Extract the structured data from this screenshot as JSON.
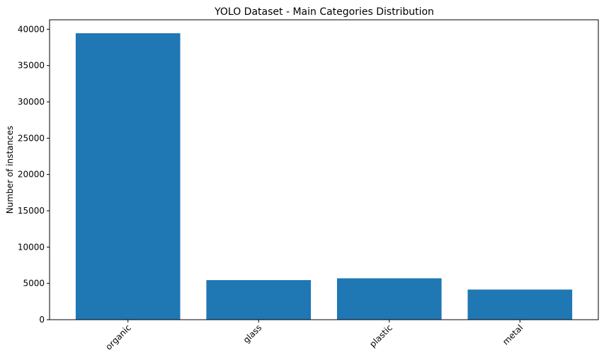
{
  "chart_data": {
    "type": "bar",
    "title": "YOLO Dataset - Main Categories Distribution",
    "xlabel": "",
    "ylabel": "Number of instances",
    "categories": [
      "organic",
      "glass",
      "plastic",
      "metal"
    ],
    "values": [
      39450,
      5450,
      5700,
      4150
    ],
    "ylim": [
      0,
      41300
    ],
    "yticks": [
      0,
      5000,
      10000,
      15000,
      20000,
      25000,
      30000,
      35000,
      40000
    ],
    "ytick_labels": [
      "0",
      "5000",
      "10000",
      "15000",
      "20000",
      "25000",
      "30000",
      "35000",
      "40000"
    ],
    "bar_color": "#1f77b4",
    "grid": false,
    "xtick_rotation": "45"
  }
}
